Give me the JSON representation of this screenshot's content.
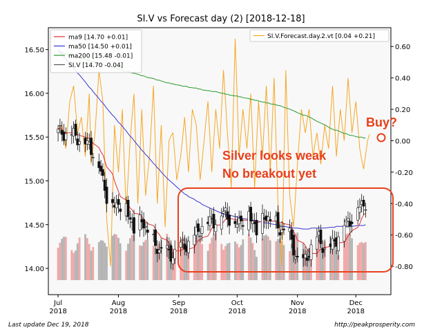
{
  "chart_data": {
    "type": "candlestick",
    "title": "SI.V vs Forecast day (2)  [2018-12-18]",
    "left_axis": {
      "ylim": [
        13.7,
        16.75
      ],
      "ticks": [
        "14.00",
        "14.50",
        "15.00",
        "15.50",
        "16.00",
        "16.50"
      ],
      "tick_values": [
        14.0,
        14.5,
        15.0,
        15.5,
        16.0,
        16.5
      ]
    },
    "right_axis": {
      "ylim": [
        -0.98,
        0.72
      ],
      "ticks": [
        "0.60",
        "0.40",
        "0.20",
        "0.00",
        "-0.20",
        "-0.40",
        "-0.60",
        "-0.80"
      ],
      "tick_values": [
        0.6,
        0.4,
        0.2,
        0.0,
        -0.2,
        -0.4,
        -0.6,
        -0.8
      ]
    },
    "x_axis": {
      "xlim": [
        -5,
        171
      ],
      "ticks": [
        {
          "line1": "Jul",
          "line2": "2018",
          "day": 0
        },
        {
          "line1": "Aug",
          "line2": "2018",
          "day": 31
        },
        {
          "line1": "Sep",
          "line2": "2018",
          "day": 62
        },
        {
          "line1": "Oct",
          "line2": "2018",
          "day": 92
        },
        {
          "line1": "Nov",
          "line2": "2018",
          "day": 123
        },
        {
          "line1": "Dec",
          "line2": "2018",
          "day": 153
        }
      ]
    },
    "legend_left": {
      "placement": "top-left",
      "entries": [
        {
          "label": "ma9 [14.70 +0.01]",
          "color": "#e03030"
        },
        {
          "label": "ma50 [14.50 +0.01]",
          "color": "#3535d0"
        },
        {
          "label": "ma200 [15.48 -0.01]",
          "color": "#2a9a2a"
        },
        {
          "label": "SI.V [14.70 -0.04]",
          "color": "#555555"
        }
      ]
    },
    "legend_right": {
      "placement": "top-right",
      "entries": [
        {
          "label": "SI.V.Forecast.day.2.vt [0.04 +0.21]",
          "color": "#f5a623"
        }
      ]
    },
    "series": {
      "ohlc": [],
      "ma9": [],
      "ma50": [],
      "ma200": [],
      "forecast": [],
      "volume": []
    },
    "annotations": {
      "buy_label": "Buy?",
      "text_line1": "Silver looks weak",
      "text_line2": "No breakout yet",
      "color": "#e8401c"
    }
  },
  "footer": {
    "left": "Last update Dec 19, 2018",
    "right": "http://peakprosperity.com"
  },
  "colors": {
    "up_candle": "#ffffff",
    "down_candle": "#111111",
    "volume_up": "#f0a8a8",
    "volume_down": "#b4b4b4",
    "plot_background": "#f8f8f8"
  }
}
